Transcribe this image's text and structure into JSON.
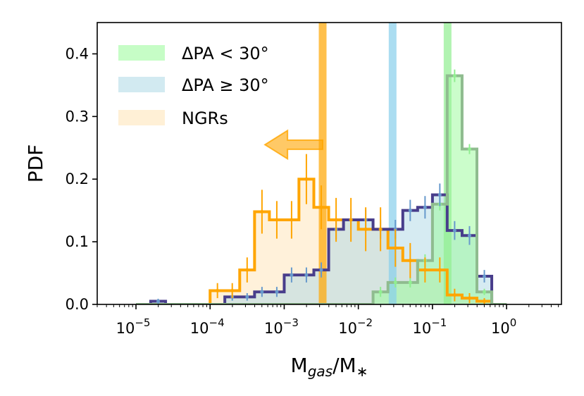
{
  "chart_data": {
    "type": "step-histogram",
    "title": "",
    "xlabel": "M_gas/M_*",
    "ylabel": "PDF",
    "xscale": "log",
    "xlim": [
      3e-06,
      5.5
    ],
    "ylim": [
      0,
      0.45
    ],
    "x_ticks": [
      {
        "value": 1e-05,
        "base": "10",
        "exp": "−5"
      },
      {
        "value": 0.0001,
        "base": "10",
        "exp": "−4"
      },
      {
        "value": 0.001,
        "base": "10",
        "exp": "−3"
      },
      {
        "value": 0.01,
        "base": "10",
        "exp": "−2"
      },
      {
        "value": 0.1,
        "base": "10",
        "exp": "−1"
      },
      {
        "value": 1,
        "base": "10",
        "exp": "0"
      }
    ],
    "y_ticks": [
      {
        "value": 0.0,
        "label": "0.0"
      },
      {
        "value": 0.1,
        "label": "0.1"
      },
      {
        "value": 0.2,
        "label": "0.2"
      },
      {
        "value": 0.3,
        "label": "0.3"
      },
      {
        "value": 0.4,
        "label": "0.4"
      }
    ],
    "series": [
      {
        "name": "ΔPA < 30°",
        "fill": "#98fb98",
        "line": "#8fbc8f",
        "err_color": "#90ee90",
        "edges": [
          1e-05,
          1.58e-05,
          2.51e-05,
          3.98e-05,
          6.31e-05,
          0.0001,
          0.000158,
          0.000251,
          0.000398,
          0.000631,
          0.001,
          0.00158,
          0.00251,
          0.00398,
          0.00631,
          0.01,
          0.0158,
          0.0251,
          0.0398,
          0.0631,
          0.1,
          0.158,
          0.251,
          0.398,
          0.631,
          1
        ],
        "values": [
          0,
          0,
          0,
          0,
          0,
          0,
          0,
          0,
          0,
          0,
          0,
          0,
          0,
          0,
          0,
          0,
          0.02,
          0.035,
          0.035,
          0.07,
          0.16,
          0.365,
          0.248,
          0.02,
          0.0
        ],
        "errors": [
          0,
          0,
          0,
          0,
          0,
          0,
          0,
          0,
          0,
          0,
          0,
          0,
          0,
          0,
          0,
          0,
          0.008,
          0.008,
          0.008,
          0.01,
          0.01,
          0.01,
          0.008,
          0.005,
          0
        ]
      },
      {
        "name": "ΔPA ≥ 30°",
        "fill": "#add8e6",
        "line": "#483d8b",
        "err_color": "#6699cc",
        "edges": [
          1e-05,
          1.58e-05,
          2.51e-05,
          3.98e-05,
          6.31e-05,
          0.0001,
          0.000158,
          0.000251,
          0.000398,
          0.000631,
          0.001,
          0.00158,
          0.00251,
          0.00398,
          0.00631,
          0.01,
          0.0158,
          0.0251,
          0.0398,
          0.0631,
          0.1,
          0.158,
          0.251,
          0.398,
          0.631,
          1
        ],
        "values": [
          0,
          0.005,
          0,
          0,
          0,
          0.0,
          0.012,
          0.012,
          0.02,
          0.02,
          0.047,
          0.047,
          0.055,
          0.12,
          0.135,
          0.135,
          0.12,
          0.12,
          0.15,
          0.155,
          0.175,
          0.118,
          0.11,
          0.045,
          0.0
        ],
        "errors": [
          0,
          0.004,
          0,
          0,
          0,
          0,
          0.006,
          0.006,
          0.008,
          0.008,
          0.012,
          0.012,
          0.012,
          0.016,
          0.016,
          0.016,
          0.015,
          0.015,
          0.017,
          0.018,
          0.018,
          0.015,
          0.015,
          0.01,
          0
        ]
      },
      {
        "name": "NGRs",
        "fill": "#ffe4b5",
        "line": "#ffa500",
        "err_color": "#ffa500",
        "edges": [
          1e-05,
          1.58e-05,
          2.51e-05,
          3.98e-05,
          6.31e-05,
          0.0001,
          0.000158,
          0.000251,
          0.000398,
          0.000631,
          0.001,
          0.00158,
          0.00251,
          0.00398,
          0.00631,
          0.01,
          0.0158,
          0.0251,
          0.0398,
          0.0631,
          0.1,
          0.158,
          0.251,
          0.398,
          0.631,
          1
        ],
        "values": [
          0.0,
          0.0,
          0.0,
          0.0,
          0.0,
          0.022,
          0.022,
          0.055,
          0.148,
          0.135,
          0.135,
          0.2,
          0.155,
          0.135,
          0.135,
          0.12,
          0.12,
          0.09,
          0.07,
          0.055,
          0.055,
          0.015,
          0.01,
          0.005,
          0.0
        ],
        "errors": [
          0.0,
          0.0,
          0.0,
          0.0,
          0.0,
          0.012,
          0.012,
          0.02,
          0.035,
          0.03,
          0.03,
          0.04,
          0.035,
          0.035,
          0.035,
          0.035,
          0.035,
          0.03,
          0.028,
          0.02,
          0.02,
          0.01,
          0.008,
          0.005,
          0.0
        ]
      }
    ],
    "vertical_lines": [
      {
        "name": "NGRs median",
        "x": 0.0033,
        "color": "#ffa500",
        "alpha": 0.7
      },
      {
        "name": "ΔPA ≥ 30° median",
        "x": 0.029,
        "color": "#87ceeb",
        "alpha": 0.7
      },
      {
        "name": "ΔPA < 30° median",
        "x": 0.16,
        "color": "#90ee90",
        "alpha": 0.7
      }
    ],
    "arrow": {
      "from_x": 0.0033,
      "to_x": 0.00055,
      "y": 0.255,
      "color": "#ffa500"
    },
    "legend": {
      "position": "top-left"
    }
  }
}
